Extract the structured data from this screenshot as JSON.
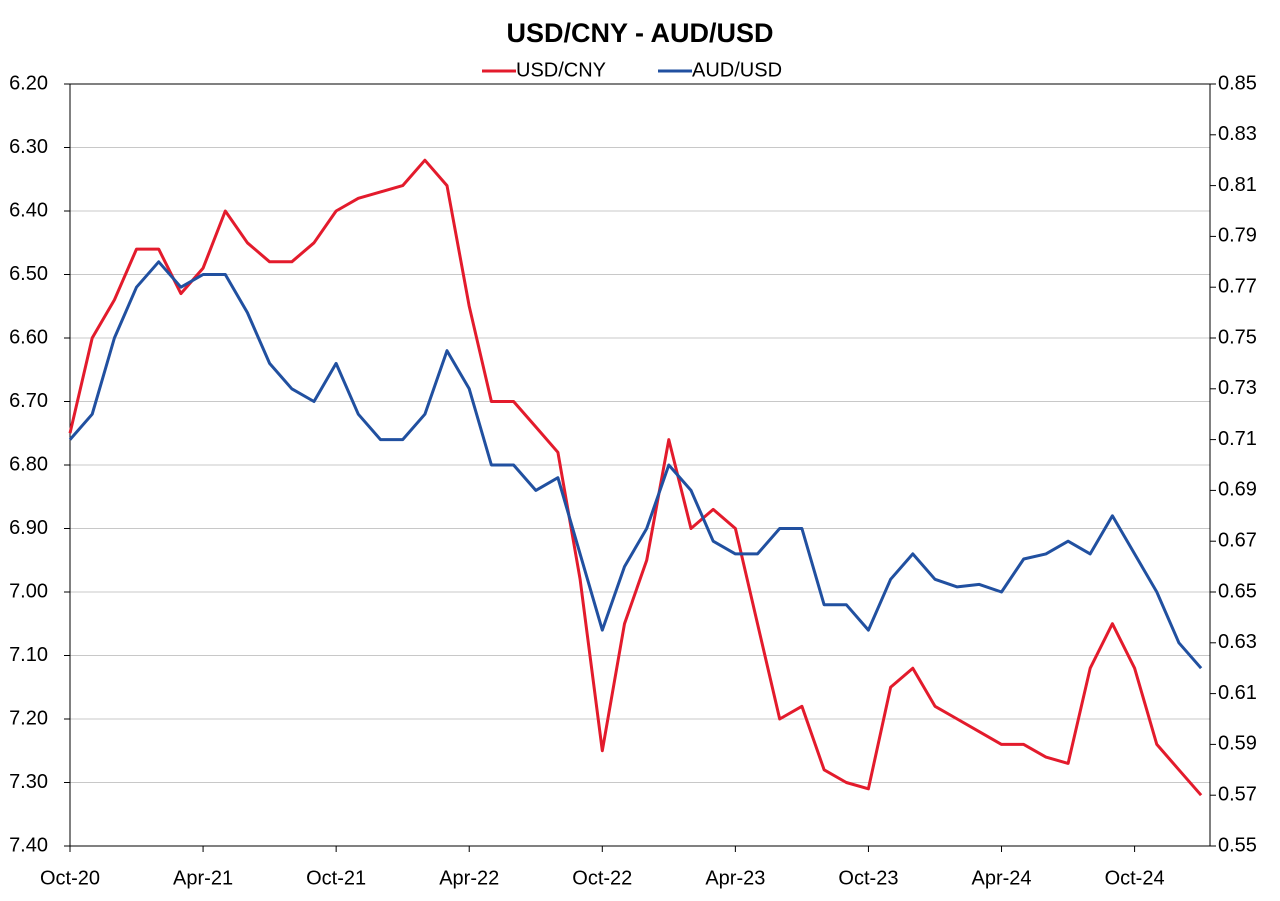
{
  "chart_data": {
    "type": "line",
    "title": "USD/CNY - AUD/USD",
    "categories": [
      "Oct-20",
      null,
      null,
      null,
      null,
      null,
      "Apr-21",
      null,
      null,
      null,
      null,
      null,
      "Oct-21",
      null,
      null,
      null,
      null,
      null,
      "Apr-22",
      null,
      null,
      null,
      null,
      null,
      "Oct-22",
      null,
      null,
      null,
      null,
      null,
      "Apr-23",
      null,
      null,
      null,
      null,
      null,
      "Oct-23",
      null,
      null,
      null,
      null,
      null,
      "Apr-24",
      null,
      null,
      null,
      null,
      null,
      "Oct-24",
      null,
      null,
      null
    ],
    "series": [
      {
        "name": "USD/CNY",
        "color": "#e31b2c",
        "axis": "y",
        "values": [
          6.75,
          6.6,
          6.54,
          6.46,
          6.46,
          6.53,
          6.49,
          6.4,
          6.45,
          6.48,
          6.48,
          6.45,
          6.4,
          6.38,
          6.37,
          6.36,
          6.32,
          6.36,
          6.55,
          6.7,
          6.7,
          6.74,
          6.78,
          6.98,
          7.25,
          7.05,
          6.95,
          6.76,
          6.9,
          6.87,
          6.9,
          7.05,
          7.2,
          7.18,
          7.28,
          7.3,
          7.31,
          7.15,
          7.12,
          7.18,
          7.2,
          7.22,
          7.24,
          7.24,
          7.26,
          7.27,
          7.12,
          7.05,
          7.12,
          7.24,
          7.28,
          7.32
        ]
      },
      {
        "name": "AUD/USD",
        "color": "#2150a0",
        "axis": "y2",
        "values": [
          0.71,
          0.72,
          0.75,
          0.77,
          0.78,
          0.77,
          0.775,
          0.775,
          0.76,
          0.74,
          0.73,
          0.725,
          0.74,
          0.72,
          0.71,
          0.71,
          0.72,
          0.745,
          0.73,
          0.7,
          0.7,
          0.69,
          0.695,
          0.665,
          0.635,
          0.66,
          0.675,
          0.7,
          0.69,
          0.67,
          0.665,
          0.665,
          0.675,
          0.675,
          0.645,
          0.645,
          0.635,
          0.655,
          0.665,
          0.655,
          0.652,
          0.653,
          0.65,
          0.663,
          0.665,
          0.67,
          0.665,
          0.68,
          0.665,
          0.65,
          0.63,
          0.62
        ]
      }
    ],
    "ylim": [
      7.4,
      6.2
    ],
    "yticks": [
      {
        "value": 6.2,
        "label": "6.20"
      },
      {
        "value": 6.3,
        "label": "6.30"
      },
      {
        "value": 6.4,
        "label": "6.40"
      },
      {
        "value": 6.5,
        "label": "6.50"
      },
      {
        "value": 6.6,
        "label": "6.60"
      },
      {
        "value": 6.7,
        "label": "6.70"
      },
      {
        "value": 6.8,
        "label": "6.80"
      },
      {
        "value": 6.9,
        "label": "6.90"
      },
      {
        "value": 7,
        "label": "7.00"
      },
      {
        "value": 7.1,
        "label": "7.10"
      },
      {
        "value": 7.2,
        "label": "7.20"
      },
      {
        "value": 7.3,
        "label": "7.30"
      },
      {
        "value": 7.4,
        "label": "7.40"
      }
    ],
    "y2lim": [
      0.55,
      0.85
    ],
    "y2ticks": [
      0.55,
      0.57,
      0.59,
      0.61,
      0.63,
      0.65,
      0.67,
      0.69,
      0.71,
      0.73,
      0.75,
      0.77,
      0.79,
      0.81,
      0.83,
      0.85
    ],
    "grid": true,
    "legend": "top"
  }
}
